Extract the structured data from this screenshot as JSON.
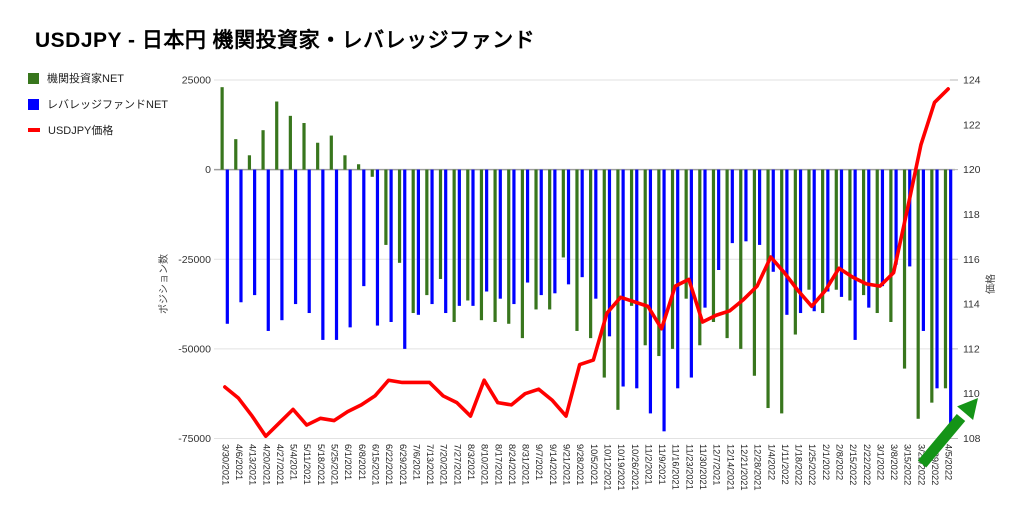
{
  "title": "USDJPY - 日本円 機関投資家・レバレッジファンド",
  "legend": {
    "items": [
      {
        "label": "機関投資家NET",
        "color": "#38761d",
        "marker": "square"
      },
      {
        "label": "レバレッジファンドNET",
        "color": "#0000ff",
        "marker": "square"
      },
      {
        "label": "USDJPY価格",
        "color": "#ff0000",
        "marker": "dash"
      }
    ]
  },
  "chart_data": {
    "type": "combo-bar-line",
    "categories": [
      "3/30/2021",
      "4/6/2021",
      "4/13/2021",
      "4/20/2021",
      "4/27/2021",
      "5/4/2021",
      "5/11/2021",
      "5/18/2021",
      "5/25/2021",
      "6/1/2021",
      "6/8/2021",
      "6/15/2021",
      "6/22/2021",
      "6/29/2021",
      "7/6/2021",
      "7/13/2021",
      "7/20/2021",
      "7/27/2021",
      "8/3/2021",
      "8/10/2021",
      "8/17/2021",
      "8/24/2021",
      "8/31/2021",
      "9/7/2021",
      "9/14/2021",
      "9/21/2021",
      "9/28/2021",
      "10/5/2021",
      "10/12/2021",
      "10/19/2021",
      "10/26/2021",
      "11/2/2021",
      "11/9/2021",
      "11/16/2021",
      "11/23/2021",
      "11/30/2021",
      "12/7/2021",
      "12/14/2021",
      "12/21/2021",
      "12/28/2021",
      "1/4/2022",
      "1/11/2022",
      "1/18/2022",
      "1/25/2022",
      "2/1/2022",
      "2/8/2022",
      "2/15/2022",
      "2/22/2022",
      "3/1/2022",
      "3/8/2022",
      "3/15/2022",
      "3/22/2022",
      "3/29/2022",
      "4/5/2022"
    ],
    "series": [
      {
        "name": "機関投資家NET",
        "type": "bar",
        "axis": "left",
        "color": "#38761d",
        "values": [
          23000,
          8500,
          4000,
          11000,
          19000,
          15000,
          13000,
          7500,
          9500,
          4000,
          1500,
          -2000,
          -21000,
          -26000,
          -40000,
          -35000,
          -30500,
          -42500,
          -36500,
          -42000,
          -42500,
          -43000,
          -47000,
          -39000,
          -39000,
          -24500,
          -45000,
          -47000,
          -58000,
          -67000,
          -38000,
          -49000,
          -52000,
          -50000,
          -36000,
          -49000,
          -42500,
          -47000,
          -50000,
          -57500,
          -66500,
          -68000,
          -46000,
          -33500,
          -40000,
          -33500,
          -36500,
          -35000,
          -40000,
          -42500,
          -55500,
          -69500,
          -65000,
          -61000
        ]
      },
      {
        "name": "レバレッジファンドNET",
        "type": "bar",
        "axis": "left",
        "color": "#0000ff",
        "values": [
          -43000,
          -37000,
          -35000,
          -45000,
          -42000,
          -37500,
          -40000,
          -47500,
          -47500,
          -44000,
          -32500,
          -43500,
          -42500,
          -50000,
          -40500,
          -37500,
          -40000,
          -38000,
          -38000,
          -34000,
          -36000,
          -37500,
          -31500,
          -35000,
          -34500,
          -32000,
          -30000,
          -36000,
          -46500,
          -60500,
          -61000,
          -68000,
          -73000,
          -61000,
          -58000,
          -38500,
          -28000,
          -20500,
          -20000,
          -21000,
          -28500,
          -40500,
          -40000,
          -39500,
          -34000,
          -35500,
          -47500,
          -38500,
          -32500,
          -26500,
          -27000,
          -45000,
          -61000,
          -71000
        ]
      },
      {
        "name": "USDJPY価格",
        "type": "line",
        "axis": "right",
        "color": "#ff0000",
        "values": [
          110.3,
          109.8,
          109.0,
          108.1,
          108.7,
          109.3,
          108.6,
          108.9,
          108.8,
          109.2,
          109.5,
          109.9,
          110.6,
          110.5,
          110.5,
          110.5,
          109.9,
          109.6,
          109.0,
          110.6,
          109.6,
          109.5,
          110.0,
          110.2,
          109.7,
          109.0,
          111.3,
          111.5,
          113.6,
          114.3,
          114.1,
          113.9,
          112.9,
          114.8,
          115.1,
          113.2,
          113.5,
          113.7,
          114.2,
          114.8,
          116.1,
          115.4,
          114.6,
          113.9,
          114.6,
          115.6,
          115.2,
          114.9,
          114.8,
          115.4,
          118.2,
          121.1,
          123.0,
          123.6
        ]
      }
    ],
    "left_axis": {
      "title": "ポジション数",
      "range": [
        -75000,
        25000
      ],
      "tick_values": [
        25000,
        0,
        -25000,
        -50000,
        -75000
      ],
      "tick_labels": [
        "25000",
        "0",
        "-25000",
        "-50000",
        "-75000"
      ]
    },
    "right_axis": {
      "title": "価格",
      "range": [
        108,
        124
      ],
      "tick_values": [
        124,
        122,
        120,
        118,
        116,
        114,
        112,
        110,
        108
      ],
      "tick_labels": [
        "124",
        "122",
        "120",
        "118",
        "116",
        "114",
        "112",
        "110",
        "108"
      ],
      "tick_marks": [
        124,
        120,
        116,
        112,
        108
      ]
    },
    "grid": "horizontal",
    "legend_position": "left-top",
    "annotation": {
      "type": "arrow",
      "direction": "up-right",
      "color": "#149417",
      "meaning": "price-breakout-highlight"
    }
  }
}
